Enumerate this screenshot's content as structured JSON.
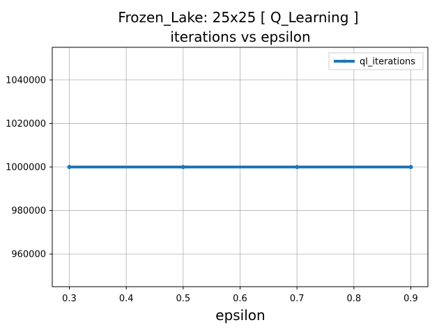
{
  "chart_data": {
    "type": "line",
    "title_line1": "Frozen_Lake: 25x25 [ Q_Learning ]",
    "title_line2": "iterations vs epsilon",
    "xlabel": "epsilon",
    "ylabel": "",
    "xlim": [
      0.27,
      0.93
    ],
    "ylim": [
      945000,
      1055000
    ],
    "xticks": [
      0.3,
      0.4,
      0.5,
      0.6,
      0.7,
      0.8,
      0.9
    ],
    "xtick_labels": [
      "0.3",
      "0.4",
      "0.5",
      "0.6",
      "0.7",
      "0.8",
      "0.9"
    ],
    "yticks": [
      960000,
      980000,
      1000000,
      1020000,
      1040000
    ],
    "ytick_labels": [
      "960000",
      "980000",
      "1000000",
      "1020000",
      "1040000"
    ],
    "grid": true,
    "legend_position": "top-right",
    "series": [
      {
        "name": "ql_iterations",
        "color": "#1f77b4",
        "x": [
          0.3,
          0.5,
          0.7,
          0.9
        ],
        "y": [
          1000000,
          1000000,
          1000000,
          1000000
        ]
      }
    ]
  }
}
